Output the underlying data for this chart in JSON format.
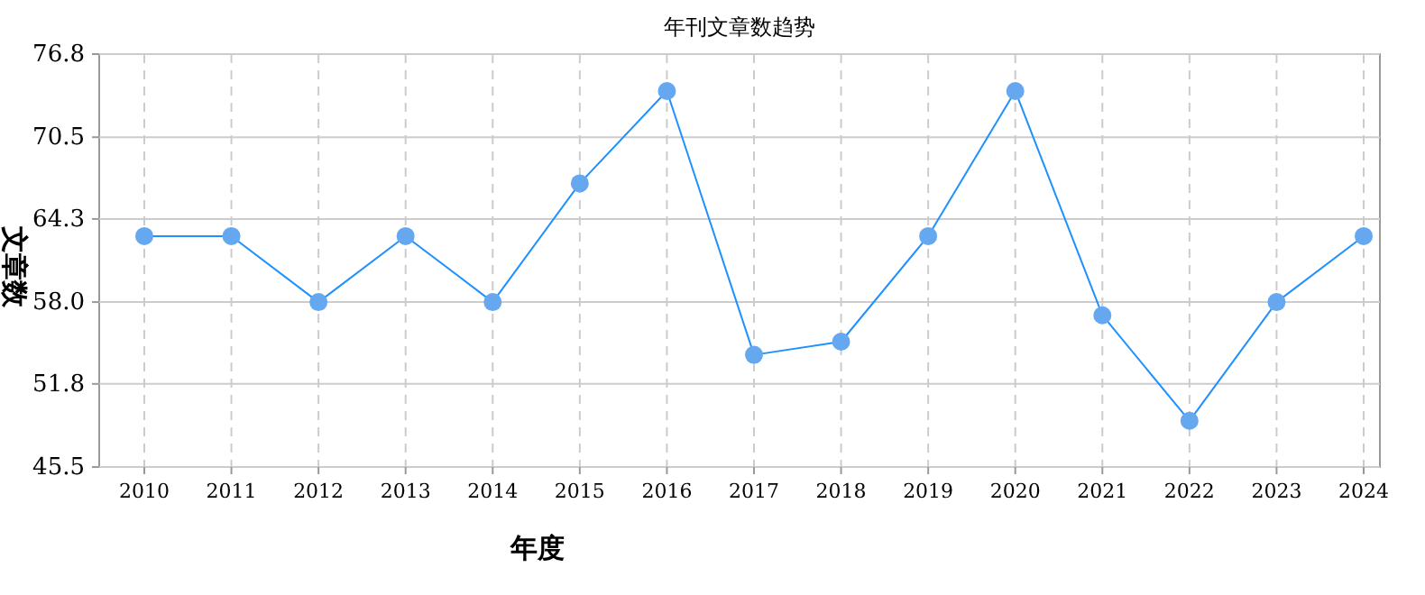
{
  "chart_data": {
    "type": "line",
    "title": "年刊文章数趋势",
    "xlabel": "年度",
    "ylabel": "文章数",
    "categories": [
      "2010",
      "2011",
      "2012",
      "2013",
      "2014",
      "2015",
      "2016",
      "2017",
      "2018",
      "2019",
      "2020",
      "2021",
      "2022",
      "2023",
      "2024"
    ],
    "series": [
      {
        "color": "#1e90ff",
        "values": [
          63,
          63,
          58,
          63,
          58,
          67,
          74,
          54,
          55,
          63,
          74,
          57,
          49,
          58,
          63
        ]
      }
    ],
    "ylim": [
      45.5,
      76.8
    ],
    "yticks": [
      45.5,
      51.8,
      {
        "value": 58,
        "label": "58.0"
      },
      64.3,
      70.5,
      76.8
    ],
    "grid": true,
    "marker": "circle",
    "line_style": "solid"
  }
}
